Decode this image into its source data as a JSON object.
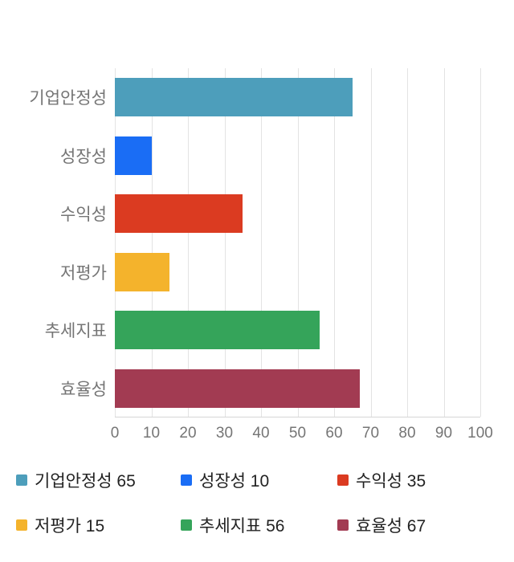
{
  "chart_data": {
    "type": "bar",
    "orientation": "horizontal",
    "title": "",
    "categories": [
      "기업안정성",
      "성장성",
      "수익성",
      "저평가",
      "추세지표",
      "효율성"
    ],
    "values": [
      65,
      10,
      35,
      15,
      56,
      67
    ],
    "colors": [
      "#4D9EBB",
      "#1A6DF5",
      "#DB3B21",
      "#F4B32C",
      "#35A45A",
      "#A23B52"
    ],
    "xlim": [
      0,
      100
    ],
    "x_ticks": [
      0,
      10,
      20,
      30,
      40,
      50,
      60,
      70,
      80,
      90,
      100
    ],
    "grid": true,
    "grid_color": "#e3e3e3",
    "legend_position": "bottom",
    "legend_labels": [
      "기업안정성 65",
      "성장성 10",
      "수익성 35",
      "저평가 15",
      "추세지표 56",
      "효율성 67"
    ]
  }
}
